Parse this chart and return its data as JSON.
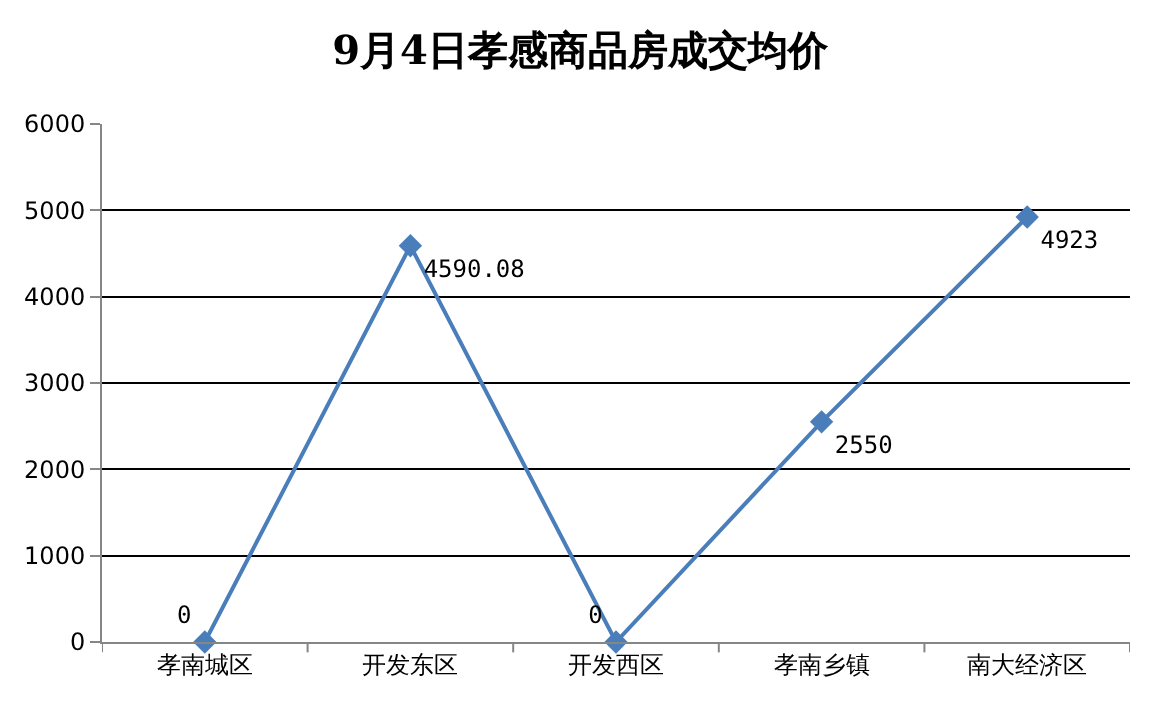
{
  "chart_data": {
    "type": "line",
    "title": "9月4日孝感商品房成交均价",
    "categories": [
      "孝南城区",
      "开发东区",
      "开发西区",
      "孝南乡镇",
      "南大经济区"
    ],
    "series": [
      {
        "color": "#4a7ebb",
        "values": [
          0,
          4590.08,
          0,
          2550,
          4923
        ]
      }
    ],
    "ylim": [
      0,
      6000
    ],
    "yticks": [
      0,
      1000,
      2000,
      3000,
      4000,
      5000,
      6000
    ],
    "grid": "y",
    "marker": "diamond",
    "line_style": "solid",
    "data_labels": true
  }
}
